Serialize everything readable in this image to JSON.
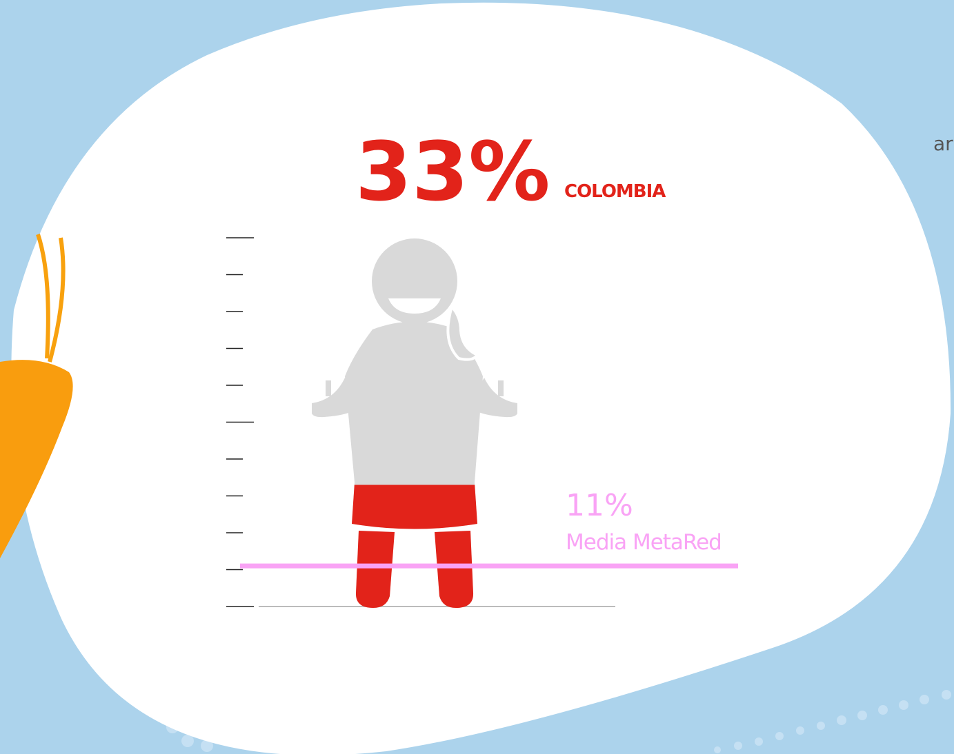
{
  "chart_data": {
    "type": "pictogram",
    "series": [
      {
        "name": "COLOMBIA",
        "values": [
          33
        ],
        "value_labels": [
          "33%"
        ],
        "color": "#e2231a"
      }
    ],
    "reference": {
      "name": "Media MetaRed",
      "value": 11,
      "value_label": "11%",
      "color": "#f9a3f5"
    },
    "ylim": [
      0,
      100
    ],
    "yticks": [
      0,
      10,
      20,
      30,
      40,
      50,
      60,
      70,
      80,
      90,
      100
    ]
  },
  "side_text": "ar"
}
